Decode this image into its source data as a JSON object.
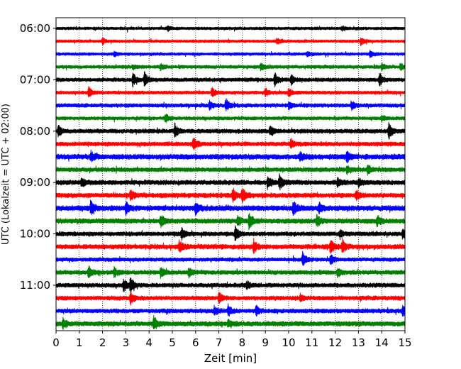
{
  "chart_data": {
    "type": "line",
    "subtype": "helicorder",
    "xlabel": "Zeit  [min]",
    "ylabel": "UTC (Lokalzeit = UTC + 02:00)",
    "xlim": [
      0,
      15
    ],
    "x_ticks": [
      "0",
      "1",
      "2",
      "3",
      "4",
      "5",
      "6",
      "7",
      "8",
      "9",
      "10",
      "11",
      "12",
      "13",
      "14",
      "15"
    ],
    "y_tick_labels": [
      "06:00",
      "07:00",
      "08:00",
      "09:00",
      "10:00",
      "11:00"
    ],
    "grid": "vertical dotted at each minute",
    "trace_interval_minutes": 15,
    "first_trace": "06:00",
    "trace_count": 24,
    "color_cycle": [
      "#000000",
      "#ff0000",
      "#0000ff",
      "#008000"
    ],
    "traces": [
      {
        "start": "06:00",
        "color": "#000000",
        "amplitude": 0.3,
        "events": [
          [
            4.8,
            0.4
          ],
          [
            12.3,
            0.35
          ]
        ]
      },
      {
        "start": "06:15",
        "color": "#ff0000",
        "amplitude": 0.3,
        "events": [
          [
            2.0,
            0.5
          ],
          [
            9.5,
            0.6
          ],
          [
            13.1,
            0.7
          ]
        ]
      },
      {
        "start": "06:30",
        "color": "#0000ff",
        "amplitude": 0.3,
        "events": [
          [
            2.5,
            0.4
          ],
          [
            10.8,
            0.5
          ],
          [
            13.5,
            0.6
          ]
        ]
      },
      {
        "start": "06:45",
        "color": "#008000",
        "amplitude": 0.35,
        "events": [
          [
            3.3,
            0.4
          ],
          [
            4.5,
            0.5
          ],
          [
            8.8,
            0.7
          ],
          [
            14.0,
            0.6
          ],
          [
            14.8,
            0.7
          ]
        ]
      },
      {
        "start": "07:00",
        "color": "#000000",
        "amplitude": 0.4,
        "events": [
          [
            3.3,
            1.2
          ],
          [
            3.8,
            1.4
          ],
          [
            9.4,
            1.2
          ],
          [
            10.1,
            0.9
          ],
          [
            13.9,
            1.3
          ]
        ]
      },
      {
        "start": "07:15",
        "color": "#ff0000",
        "amplitude": 0.35,
        "events": [
          [
            1.4,
            1.1
          ],
          [
            6.7,
            0.9
          ],
          [
            9.0,
            0.7
          ],
          [
            10.0,
            0.8
          ]
        ]
      },
      {
        "start": "07:30",
        "color": "#0000ff",
        "amplitude": 0.4,
        "events": [
          [
            6.6,
            0.8
          ],
          [
            7.3,
            1.2
          ],
          [
            10.0,
            0.6
          ],
          [
            12.7,
            0.8
          ]
        ]
      },
      {
        "start": "07:45",
        "color": "#008000",
        "amplitude": 0.35,
        "events": [
          [
            4.7,
            0.8
          ],
          [
            14.0,
            0.6
          ]
        ]
      },
      {
        "start": "08:00",
        "color": "#000000",
        "amplitude": 0.45,
        "events": [
          [
            0.1,
            1.0
          ],
          [
            5.1,
            1.3
          ],
          [
            9.2,
            0.9
          ],
          [
            14.3,
            1.4
          ]
        ]
      },
      {
        "start": "08:15",
        "color": "#ff0000",
        "amplitude": 0.45,
        "events": [
          [
            5.9,
            1.3
          ],
          [
            10.1,
            0.8
          ]
        ]
      },
      {
        "start": "08:30",
        "color": "#0000ff",
        "amplitude": 0.55,
        "events": [
          [
            1.5,
            0.9
          ],
          [
            10.5,
            0.7
          ],
          [
            12.5,
            0.9
          ]
        ]
      },
      {
        "start": "08:45",
        "color": "#008000",
        "amplitude": 0.45,
        "events": [
          [
            12.5,
            0.7
          ],
          [
            13.4,
            0.9
          ]
        ]
      },
      {
        "start": "09:00",
        "color": "#000000",
        "amplitude": 0.5,
        "events": [
          [
            1.1,
            0.8
          ],
          [
            9.1,
            1.2
          ],
          [
            9.6,
            1.3
          ],
          [
            12.1,
            0.8
          ],
          [
            13.0,
            0.7
          ]
        ]
      },
      {
        "start": "09:15",
        "color": "#ff0000",
        "amplitude": 0.5,
        "events": [
          [
            3.2,
            0.9
          ],
          [
            7.6,
            1.1
          ],
          [
            8.0,
            1.3
          ],
          [
            12.9,
            0.9
          ]
        ]
      },
      {
        "start": "09:30",
        "color": "#0000ff",
        "amplitude": 0.55,
        "events": [
          [
            1.5,
            1.3
          ],
          [
            3.0,
            1.0
          ],
          [
            6.0,
            1.1
          ],
          [
            10.2,
            1.2
          ],
          [
            11.3,
            0.9
          ]
        ]
      },
      {
        "start": "09:45",
        "color": "#008000",
        "amplitude": 0.5,
        "events": [
          [
            4.5,
            1.1
          ],
          [
            7.8,
            0.9
          ],
          [
            8.3,
            1.5
          ],
          [
            11.2,
            1.0
          ],
          [
            13.8,
            1.0
          ]
        ]
      },
      {
        "start": "10:00",
        "color": "#000000",
        "amplitude": 0.45,
        "events": [
          [
            5.4,
            1.0
          ],
          [
            7.7,
            1.5
          ],
          [
            12.2,
            0.8
          ],
          [
            14.9,
            0.9
          ]
        ]
      },
      {
        "start": "10:15",
        "color": "#ff0000",
        "amplitude": 0.5,
        "events": [
          [
            5.3,
            1.1
          ],
          [
            8.5,
            1.2
          ],
          [
            11.8,
            1.2
          ],
          [
            12.3,
            1.3
          ]
        ]
      },
      {
        "start": "10:30",
        "color": "#0000ff",
        "amplitude": 0.4,
        "events": [
          [
            10.6,
            1.3
          ],
          [
            11.8,
            0.9
          ]
        ]
      },
      {
        "start": "10:45",
        "color": "#008000",
        "amplitude": 0.45,
        "events": [
          [
            1.4,
            1.1
          ],
          [
            2.5,
            0.8
          ],
          [
            4.5,
            0.9
          ],
          [
            5.7,
            0.8
          ],
          [
            12.1,
            0.8
          ]
        ]
      },
      {
        "start": "11:00",
        "color": "#000000",
        "amplitude": 0.45,
        "events": [
          [
            2.9,
            1.3
          ],
          [
            3.2,
            1.5
          ],
          [
            8.2,
            0.8
          ]
        ]
      },
      {
        "start": "11:15",
        "color": "#ff0000",
        "amplitude": 0.45,
        "events": [
          [
            3.2,
            1.1
          ],
          [
            7.0,
            1.0
          ],
          [
            10.5,
            0.6
          ]
        ]
      },
      {
        "start": "11:30",
        "color": "#0000ff",
        "amplitude": 0.45,
        "events": [
          [
            6.8,
            0.8
          ],
          [
            7.4,
            1.0
          ],
          [
            8.6,
            0.8
          ],
          [
            14.9,
            0.9
          ]
        ]
      },
      {
        "start": "11:45",
        "color": "#008000",
        "amplitude": 0.5,
        "events": [
          [
            0.3,
            1.0
          ],
          [
            4.2,
            1.3
          ],
          [
            7.4,
            0.7
          ]
        ]
      }
    ]
  }
}
